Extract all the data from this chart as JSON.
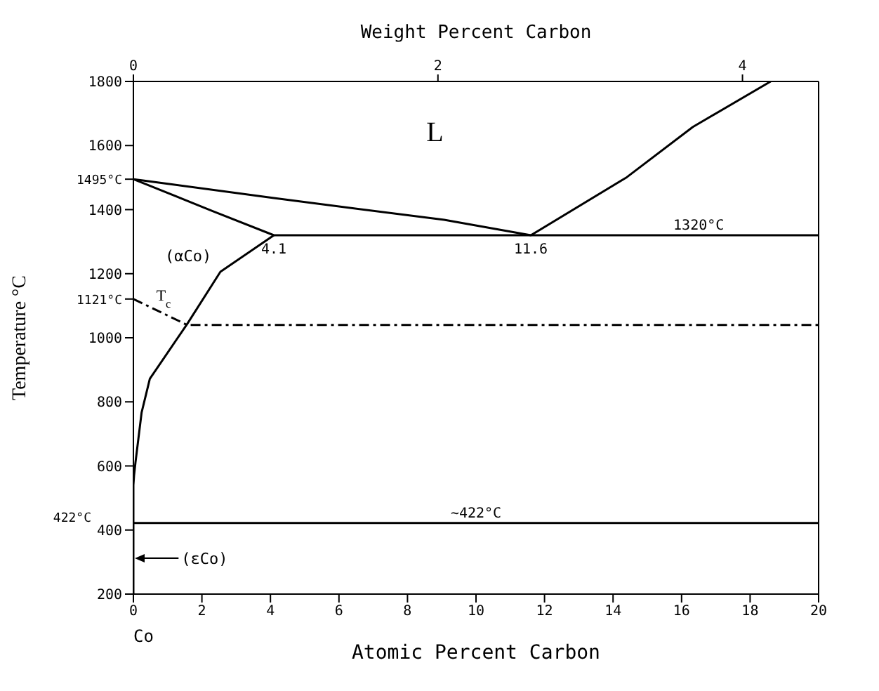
{
  "chart_data": {
    "type": "line",
    "xlabel": "Atomic Percent Carbon",
    "x2label": "Weight Percent Carbon",
    "ylabel": "Temperature °C",
    "xlim": [
      0,
      20
    ],
    "xticks": [
      0,
      2,
      4,
      6,
      8,
      10,
      12,
      14,
      16,
      18,
      20
    ],
    "x2lim": [
      0,
      4.5
    ],
    "x2ticks": [
      0,
      2,
      4
    ],
    "ylim": [
      200,
      1800
    ],
    "yticks": [
      200,
      400,
      600,
      800,
      1000,
      {
        "value": 1121,
        "label": "1121°C"
      },
      1200,
      1400,
      {
        "value": 1495,
        "label": "1495°C"
      },
      1600,
      1800
    ],
    "marker": "none",
    "series": [
      {
        "color": "#000000",
        "x": [
          0,
          4.1,
          9.07,
          11.6,
          14.4,
          16.33,
          18.6
        ],
        "values": [
          1495,
          1436,
          1368,
          1320,
          1501,
          1658,
          1800
        ]
      },
      {
        "color": "#000000",
        "x": [
          0,
          2.3,
          4.1,
          20
        ],
        "values": [
          1495,
          1396,
          1320,
          1320
        ]
      },
      {
        "color": "#000000",
        "x": [
          4.1,
          2.54,
          1.57,
          0.48,
          0.24,
          0.06,
          0.02,
          0,
          0
        ],
        "values": [
          1320,
          1206,
          1043,
          872,
          767,
          610,
          571,
          540,
          200
        ]
      },
      {
        "color": "#000000",
        "x": [
          0,
          1.57,
          20
        ],
        "values": [
          1121,
          1040,
          1040
        ],
        "line_style": "dashed"
      }
    ],
    "ref_lines": [
      {
        "axis": "y",
        "value": 422,
        "label": "422°C",
        "color": "#000000"
      }
    ],
    "annotations": [
      "L",
      "(αCo)",
      {
        "text": "4.1",
        "x": 4.1,
        "y": 1320
      },
      {
        "text": "11.6",
        "x": 11.6,
        "y": 1320
      },
      {
        "text": "1320°C",
        "x": 16.5,
        "y": 1320
      },
      {
        "text": "T$_{c}$",
        "x": 0.8,
        "y": 1090
      },
      {
        "text": "~422°C",
        "x": 10,
        "y": 422
      },
      "(εCo)",
      "Co"
    ]
  }
}
